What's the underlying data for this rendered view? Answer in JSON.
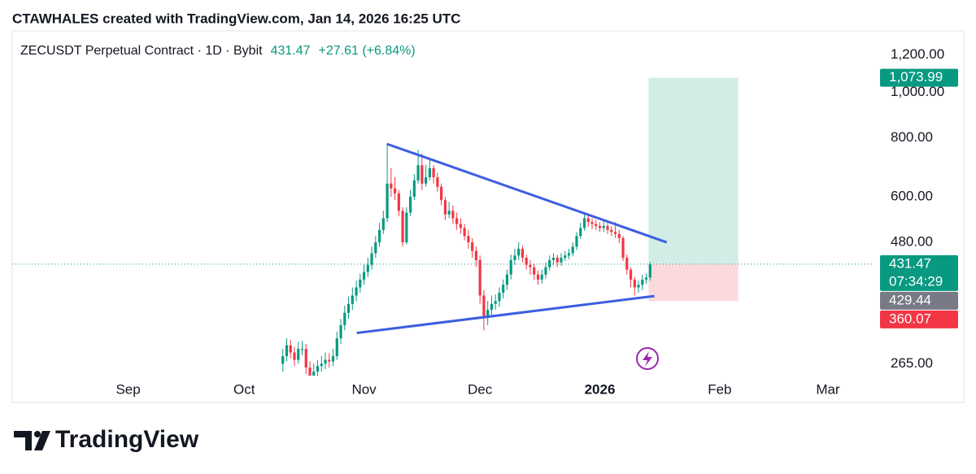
{
  "header": {
    "attribution": "CTAWHALES created with TradingView.com, Jan 14, 2026 16:25 UTC"
  },
  "footer": {
    "brand": "TradingView"
  },
  "chart_data": {
    "type": "candlestick",
    "title": "ZECUSDT Perpetual Contract · 1D · Bybit",
    "last": 431.47,
    "change": "+27.61 (+6.84%)",
    "log_scale": true,
    "up_color": "#089981",
    "down_color": "#f23645",
    "xlim": [
      -30,
      193
    ],
    "xticks": [
      {
        "value": 0,
        "label": "Sep"
      },
      {
        "value": 30,
        "label": "Oct"
      },
      {
        "value": 61,
        "label": "Nov"
      },
      {
        "value": 91,
        "label": "Dec"
      },
      {
        "value": 122,
        "label": "2026"
      },
      {
        "value": 153,
        "label": "Feb"
      },
      {
        "value": 181,
        "label": "Mar"
      }
    ],
    "ylim": [
      250,
      1340
    ],
    "yticks": [
      {
        "value": 265,
        "label": "265.00"
      },
      {
        "value": 480,
        "label": "480.00"
      },
      {
        "value": 600,
        "label": "600.00"
      },
      {
        "value": 800,
        "label": "800.00"
      },
      {
        "value": 1000,
        "label": "1,000.00"
      },
      {
        "value": 1200,
        "label": "1,200.00"
      }
    ],
    "x": [
      40,
      41,
      42,
      43,
      44,
      45,
      46,
      47,
      48,
      49,
      50,
      51,
      52,
      53,
      54,
      55,
      56,
      57,
      58,
      59,
      60,
      61,
      62,
      63,
      64,
      65,
      66,
      67,
      68,
      69,
      70,
      71,
      72,
      73,
      74,
      75,
      76,
      77,
      78,
      79,
      80,
      81,
      82,
      83,
      84,
      85,
      86,
      87,
      88,
      89,
      90,
      91,
      92,
      93,
      94,
      95,
      96,
      97,
      98,
      99,
      100,
      101,
      102,
      103,
      104,
      105,
      106,
      107,
      108,
      109,
      110,
      111,
      112,
      113,
      114,
      115,
      116,
      117,
      118,
      119,
      120,
      121,
      122,
      123,
      124,
      125,
      126,
      127,
      128,
      129,
      130,
      131,
      132,
      133,
      134,
      135
    ],
    "open": [
      265,
      275,
      290,
      280,
      270,
      285,
      285,
      260,
      250,
      255,
      262,
      265,
      270,
      268,
      275,
      300,
      320,
      340,
      355,
      370,
      385,
      400,
      415,
      430,
      455,
      480,
      510,
      540,
      640,
      625,
      610,
      560,
      480,
      555,
      600,
      650,
      700,
      640,
      660,
      690,
      660,
      630,
      590,
      550,
      560,
      540,
      525,
      515,
      495,
      480,
      460,
      440,
      370,
      335,
      345,
      355,
      360,
      375,
      390,
      410,
      440,
      450,
      465,
      445,
      430,
      425,
      410,
      400,
      410,
      425,
      440,
      445,
      435,
      445,
      450,
      455,
      470,
      495,
      515,
      540,
      530,
      525,
      520,
      515,
      520,
      510,
      505,
      500,
      490,
      445,
      420,
      400,
      385,
      390,
      400,
      403.86
    ],
    "high": [
      285,
      300,
      298,
      288,
      295,
      296,
      292,
      268,
      265,
      270,
      275,
      280,
      279,
      285,
      310,
      330,
      352,
      368,
      385,
      398,
      412,
      430,
      445,
      470,
      495,
      528,
      560,
      777,
      690,
      660,
      620,
      570,
      570,
      620,
      670,
      755,
      740,
      700,
      725,
      700,
      675,
      640,
      600,
      585,
      575,
      555,
      540,
      525,
      510,
      490,
      470,
      450,
      380,
      360,
      370,
      372,
      385,
      400,
      420,
      452,
      465,
      480,
      472,
      452,
      440,
      432,
      418,
      420,
      435,
      450,
      455,
      452,
      455,
      460,
      465,
      480,
      505,
      528,
      552,
      548,
      540,
      535,
      530,
      532,
      528,
      520,
      530,
      510,
      495,
      452,
      425,
      405,
      398,
      410,
      412,
      436
    ],
    "low": [
      255,
      268,
      272,
      262,
      265,
      276,
      252,
      240,
      243,
      248,
      255,
      258,
      260,
      262,
      270,
      292,
      312,
      330,
      345,
      360,
      375,
      390,
      405,
      420,
      445,
      470,
      500,
      530,
      600,
      590,
      545,
      470,
      475,
      545,
      590,
      640,
      620,
      630,
      650,
      640,
      615,
      575,
      535,
      540,
      525,
      510,
      500,
      485,
      465,
      445,
      425,
      355,
      312,
      320,
      335,
      345,
      350,
      365,
      380,
      400,
      430,
      440,
      435,
      420,
      410,
      400,
      390,
      392,
      402,
      418,
      430,
      425,
      428,
      438,
      442,
      448,
      462,
      488,
      508,
      518,
      512,
      510,
      505,
      505,
      500,
      495,
      490,
      478,
      438,
      410,
      385,
      370,
      375,
      380,
      392,
      398
    ],
    "close": [
      275,
      290,
      280,
      270,
      285,
      285,
      260,
      250,
      255,
      262,
      265,
      270,
      268,
      275,
      300,
      320,
      340,
      355,
      370,
      385,
      400,
      415,
      430,
      455,
      480,
      510,
      540,
      640,
      625,
      610,
      560,
      480,
      555,
      600,
      650,
      700,
      640,
      660,
      690,
      660,
      630,
      590,
      550,
      560,
      540,
      525,
      515,
      495,
      480,
      460,
      440,
      370,
      335,
      345,
      355,
      360,
      375,
      390,
      410,
      440,
      450,
      465,
      445,
      430,
      425,
      410,
      400,
      410,
      425,
      440,
      445,
      435,
      445,
      450,
      455,
      470,
      495,
      515,
      540,
      530,
      525,
      520,
      515,
      520,
      510,
      505,
      500,
      490,
      445,
      420,
      400,
      385,
      390,
      400,
      403.86,
      431.47
    ],
    "trend_lines": [
      {
        "x": [
          66.9,
          139.3
        ],
        "y": [
          777,
          480
        ],
        "color": "#3d5ee1"
      },
      {
        "x": [
          59.1,
          136.1
        ],
        "y": [
          308,
          369
        ],
        "color": "#3d5ee1"
      }
    ],
    "position": {
      "x": [
        134.6,
        157.8
      ],
      "profit_color": "#d2ede6",
      "loss_color": "#fbdadd"
    },
    "price_tags": [
      {
        "value": 1073.99,
        "label": "1,073.99",
        "color": "#089981"
      },
      {
        "value": 431.47,
        "color": "#089981",
        "countdown": "07:34:29"
      },
      {
        "value": 429.44,
        "color": "#787b86"
      },
      {
        "value": 360.07,
        "color": "#f23645"
      }
    ]
  }
}
